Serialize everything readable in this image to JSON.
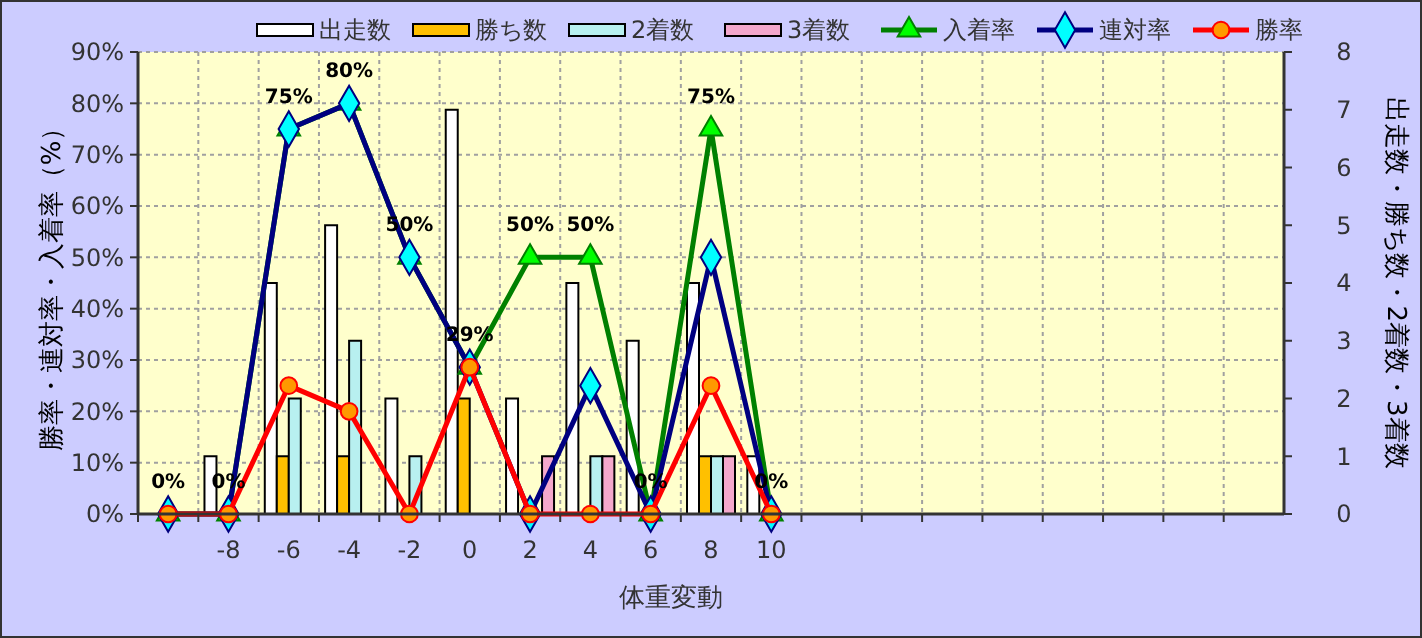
{
  "chart_data": {
    "type": "bar",
    "xlabel": "体重変動",
    "ylabel": "勝率・連対率・入着率（%）",
    "y2label": "出走数・勝ち数・2着数・3着数",
    "categories": [
      null,
      "-8",
      "-6",
      "-4",
      "-2",
      "0",
      "2",
      "4",
      "6",
      "8",
      "10",
      null,
      null,
      null,
      null,
      null,
      null,
      null,
      null
    ],
    "ylim": [
      0,
      90
    ],
    "yticks": [
      {
        "value": 0,
        "label": "0%"
      },
      {
        "value": 10,
        "label": "10%"
      },
      {
        "value": 20,
        "label": "20%"
      },
      {
        "value": 30,
        "label": "30%"
      },
      {
        "value": 40,
        "label": "40%"
      },
      {
        "value": 50,
        "label": "50%"
      },
      {
        "value": 60,
        "label": "60%"
      },
      {
        "value": 70,
        "label": "70%"
      },
      {
        "value": 80,
        "label": "80%"
      },
      {
        "value": 90,
        "label": "90%"
      }
    ],
    "y2lim": [
      0,
      8
    ],
    "y2ticks": [
      0,
      1,
      2,
      3,
      4,
      5,
      6,
      7,
      8
    ],
    "grid": true,
    "legend": "top",
    "series": [
      {
        "name": "出走数",
        "axis": "y2",
        "color": "#ffffff",
        "values": [
          0,
          1,
          4,
          5,
          2,
          7,
          2,
          4,
          3,
          4,
          1,
          null,
          null,
          null,
          null,
          null,
          null,
          null,
          null
        ]
      },
      {
        "name": "勝ち数",
        "axis": "y2",
        "color": "#ffc000",
        "values": [
          0,
          0,
          1,
          1,
          0,
          2,
          0,
          0,
          0,
          1,
          0,
          null,
          null,
          null,
          null,
          null,
          null,
          null,
          null
        ]
      },
      {
        "name": "2着数",
        "axis": "y2",
        "color": "#b8f0f0",
        "values": [
          0,
          0,
          2,
          3,
          1,
          0,
          0,
          1,
          0,
          1,
          0,
          null,
          null,
          null,
          null,
          null,
          null,
          null,
          null
        ]
      },
      {
        "name": "3着数",
        "axis": "y2",
        "color": "#f4a8cc",
        "values": [
          0,
          0,
          0,
          0,
          0,
          0,
          1,
          1,
          0,
          1,
          0,
          null,
          null,
          null,
          null,
          null,
          null,
          null,
          null
        ]
      },
      {
        "name": "入着率",
        "type": "line",
        "color": "#008000",
        "marker": "triangle",
        "values": [
          0,
          0,
          75,
          80,
          50,
          28.6,
          50,
          50,
          0,
          75,
          0,
          null,
          null,
          null,
          null,
          null,
          null,
          null,
          null
        ],
        "value_labels": [
          "0%",
          "0%",
          "75%",
          "80%",
          "50%",
          "29%",
          "50%",
          "50%",
          "0%",
          "75%",
          "0%",
          null,
          null,
          null,
          null,
          null,
          null,
          null,
          null
        ]
      },
      {
        "name": "連対率",
        "type": "line",
        "color": "#000080",
        "marker": "diamond",
        "values": [
          0,
          0,
          75,
          80,
          50,
          28.6,
          0,
          25,
          0,
          50,
          0,
          null,
          null,
          null,
          null,
          null,
          null,
          null,
          null
        ]
      },
      {
        "name": "勝率",
        "type": "line",
        "color": "#ff0000",
        "marker": "circle",
        "values": [
          0,
          0,
          25,
          20,
          0,
          28.6,
          0,
          0,
          0,
          25,
          0,
          null,
          null,
          null,
          null,
          null,
          null,
          null,
          null
        ]
      }
    ]
  }
}
